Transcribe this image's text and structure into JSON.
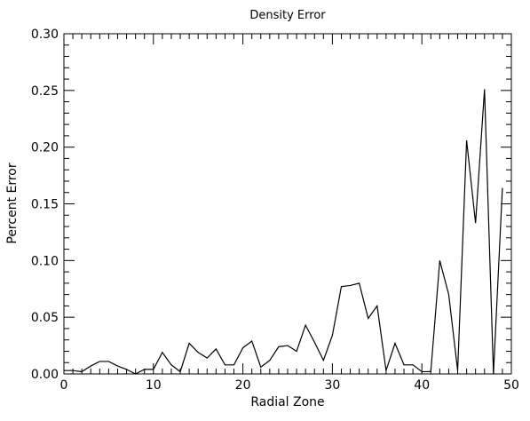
{
  "chart_data": {
    "type": "line",
    "title": "Density Error",
    "xlabel": "Radial Zone",
    "ylabel": "Percent Error",
    "xlim": [
      0,
      50
    ],
    "ylim": [
      0,
      0.3
    ],
    "grid": false,
    "legend": "none",
    "line_color": "#000000",
    "xticks": [
      0,
      10,
      20,
      30,
      40,
      50
    ],
    "xtick_labels": [
      "0",
      "10",
      "20",
      "30",
      "40",
      "50"
    ],
    "x_minor_step": 1,
    "yticks": [
      0,
      0.05,
      0.1,
      0.15,
      0.2,
      0.25,
      0.3
    ],
    "ytick_labels": [
      "0.00",
      "0.05",
      "0.10",
      "0.15",
      "0.20",
      "0.25",
      "0.30"
    ],
    "y_minor_step": 0.01,
    "series": [
      {
        "x": [
          0,
          1,
          2,
          3,
          4,
          5,
          6,
          7,
          8,
          9,
          10,
          11,
          12,
          13,
          14,
          15,
          16,
          17,
          18,
          19,
          20,
          21,
          22,
          23,
          24,
          25,
          26,
          27,
          28,
          29,
          30,
          31,
          32,
          33,
          34,
          35,
          36,
          37,
          38,
          39,
          40,
          41,
          42,
          43,
          44,
          45,
          46,
          47,
          48,
          49
        ],
        "y": [
          0.003,
          0.003,
          0.002,
          0.007,
          0.011,
          0.011,
          0.007,
          0.004,
          0.0,
          0.004,
          0.004,
          0.019,
          0.008,
          0.002,
          0.027,
          0.019,
          0.014,
          0.022,
          0.008,
          0.008,
          0.023,
          0.029,
          0.006,
          0.012,
          0.024,
          0.025,
          0.02,
          0.043,
          0.028,
          0.012,
          0.034,
          0.077,
          0.078,
          0.08,
          0.049,
          0.06,
          0.003,
          0.027,
          0.008,
          0.008,
          0.002,
          0.002,
          0.1,
          0.07,
          0.003,
          0.206,
          0.133,
          0.251,
          0.0,
          0.164
        ]
      }
    ]
  }
}
